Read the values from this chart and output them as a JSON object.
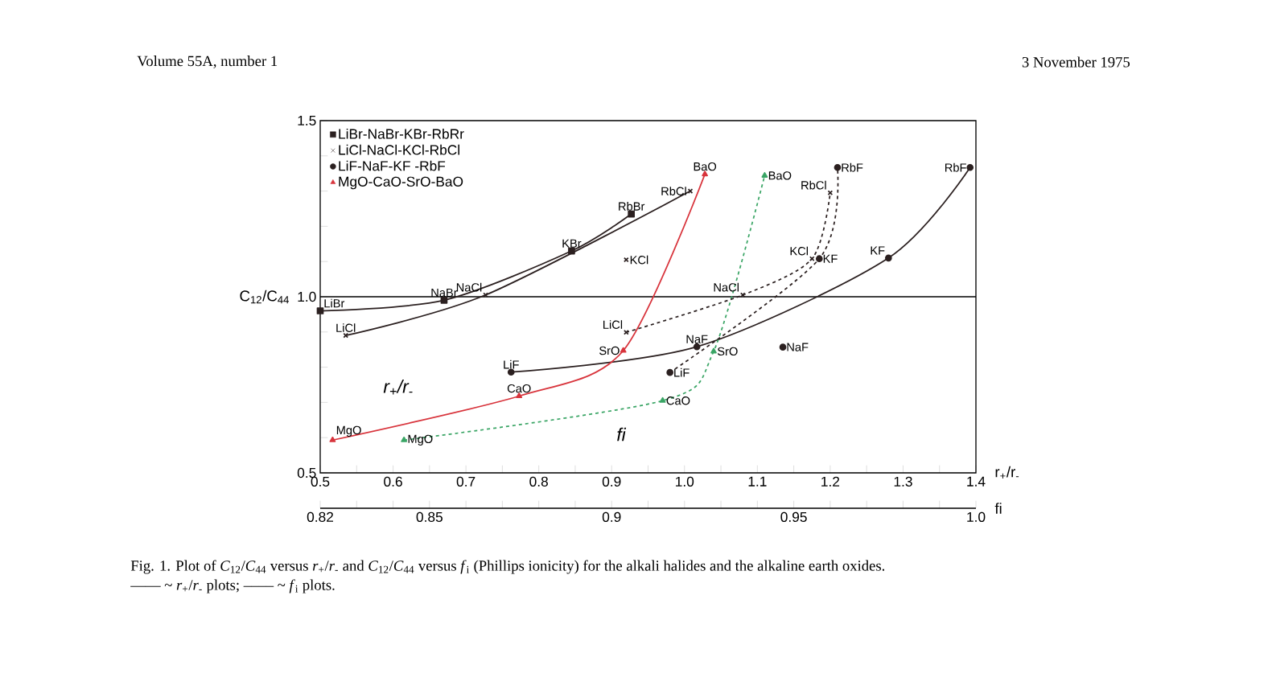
{
  "chart_data": {
    "type": "line",
    "ylabel": "C$_{12}$/C$_{44}$",
    "xlabel": "r$_{+}$/r$_{-}$",
    "x2label": "fi",
    "xlim": [
      0.5,
      1.4
    ],
    "xticks": [
      0.5,
      {
        "value": 0.55,
        "label": null
      },
      0.6,
      {
        "value": 0.65,
        "label": null
      },
      0.7,
      {
        "value": 0.75,
        "label": null
      },
      0.8,
      {
        "value": 0.85,
        "label": null
      },
      0.9,
      {
        "value": 0.95,
        "label": null
      },
      {
        "value": 1,
        "label": "1.0"
      },
      {
        "value": 1.05,
        "label": null
      },
      1.1,
      {
        "value": 1.15,
        "label": null
      },
      1.2,
      {
        "value": 1.25,
        "label": null
      },
      1.3,
      {
        "value": 1.35,
        "label": null
      },
      1.4
    ],
    "x2lim": [
      0.82,
      1.0
    ],
    "x2ticks": [
      0.82,
      {
        "value": 0.83,
        "label": null
      },
      {
        "value": 0.84,
        "label": null
      },
      0.85,
      {
        "value": 0.86,
        "label": null
      },
      {
        "value": 0.87,
        "label": null
      },
      {
        "value": 0.88,
        "label": null
      },
      {
        "value": 0.89,
        "label": null
      },
      0.9,
      {
        "value": 0.91,
        "label": null
      },
      {
        "value": 0.92,
        "label": null
      },
      {
        "value": 0.93,
        "label": null
      },
      {
        "value": 0.94,
        "label": null
      },
      0.95,
      {
        "value": 0.96,
        "label": null
      },
      {
        "value": 0.97,
        "label": null
      },
      {
        "value": 0.98,
        "label": null
      },
      {
        "value": 0.99,
        "label": null
      },
      {
        "value": 1,
        "label": "1.0"
      }
    ],
    "ylim": [
      0.5,
      1.5
    ],
    "yticks": [
      0.5,
      {
        "value": 0.6,
        "label": null
      },
      {
        "value": 0.7,
        "label": null
      },
      {
        "value": 0.8,
        "label": null
      },
      {
        "value": 0.9,
        "label": null
      },
      {
        "value": 1,
        "label": "1.0"
      },
      {
        "value": 1.1,
        "label": null
      },
      {
        "value": 1.2,
        "label": null
      },
      {
        "value": 1.3,
        "label": null
      },
      {
        "value": 1.4,
        "label": null
      },
      1.5
    ],
    "legend": "top left",
    "ref_lines": [
      {
        "axis": "y",
        "value": 1
      }
    ],
    "series": [
      {
        "name": "LiBr-NaBr-KBr-RbRr",
        "color": "#2b2020",
        "marker": "square",
        "line_style": "solid",
        "x": [
          0.5,
          0.67,
          0.845,
          0.927
        ],
        "values": [
          0.96,
          0.99,
          1.13,
          1.235
        ],
        "value_labels": [
          "LiBr",
          "NaBr",
          "KBr",
          "RbBr"
        ]
      },
      {
        "name": "LiCl-NaCl-KCl-RbCl",
        "color": "#2b2020",
        "marker": "cross",
        "line_style": "solid",
        "x": [
          0.535,
          0.727,
          1.008
        ],
        "values": [
          0.89,
          1.005,
          1.3
        ],
        "value_labels": [
          "LiCl",
          "NaCl",
          "RbCl"
        ]
      },
      {
        "type": "scatter",
        "color": "#2b2020",
        "marker": "cross",
        "x": [
          0.92
        ],
        "values": [
          1.105
        ],
        "value_labels": [
          "KCl"
        ]
      },
      {
        "name": "LiF-NaF-KF -RbF",
        "color": "#2b2020",
        "marker": "circle",
        "line_style": "solid",
        "x": [
          0.762,
          1.017,
          1.28,
          1.392
        ],
        "values": [
          0.786,
          0.858,
          1.11,
          1.367
        ],
        "value_labels": [
          "LiF",
          "NaF",
          "KF",
          "RbF"
        ]
      },
      {
        "name": "MgO-CaO-SrO-BaO",
        "color": "#d8343c",
        "marker": "triangle",
        "line_style": "solid",
        "x": [
          0.517,
          0.773,
          0.916,
          1.028
        ],
        "values": [
          0.593,
          0.718,
          0.847,
          1.348
        ],
        "value_labels": [
          "MgO",
          "CaO",
          "SrO",
          "BaO"
        ]
      },
      {
        "axis": "x2",
        "color": "#3aa565",
        "marker": "triangle",
        "line_style": "dashed",
        "x": [
          0.843,
          0.914,
          0.928,
          0.942
        ],
        "values": [
          0.593,
          0.705,
          0.845,
          1.344
        ],
        "value_labels": [
          "MgO",
          "CaO",
          "SrO",
          "BaO"
        ]
      },
      {
        "axis": "x2",
        "color": "#2b2020",
        "marker": "cross",
        "line_style": "dashed",
        "x": [
          0.904,
          0.936,
          0.955,
          0.96
        ],
        "values": [
          0.899,
          1.005,
          1.108,
          1.295
        ],
        "value_labels": [
          "LiCl",
          "NaCl",
          "KCl",
          "RbCl"
        ]
      },
      {
        "axis": "x2",
        "color": "#2b2020",
        "marker": "circle",
        "line_style": "dashed",
        "x": [
          0.916,
          0.957,
          0.962
        ],
        "values": [
          0.785,
          1.108,
          1.367
        ],
        "value_labels": [
          "LiF",
          "KF",
          "RbF"
        ]
      },
      {
        "type": "scatter",
        "axis": "x2",
        "color": "#2b2020",
        "marker": "circle",
        "x": [
          0.947
        ],
        "values": [
          0.857
        ],
        "value_labels": [
          "NaF"
        ]
      }
    ],
    "annotations": [
      "Volume 55A, number 1",
      "3 November 1975",
      "Fig. 1. Plot of *C*$_{12}$/*C*$_{44}$ versus *r*$_{+}$/*r*$_{-}$ and *C*$_{12}$/*C*$_{44}$ versus *f*$_{i}$ (Phillips ionicity) for the alkali halides and the alkaline earth oxides.",
      "—— ~ *r*$_{+}$/*r*$_{-}$ plots; –––– ~ *f*$_{i}$ plots.",
      "r$_{+}$/r$_{-}$",
      "fi"
    ]
  }
}
